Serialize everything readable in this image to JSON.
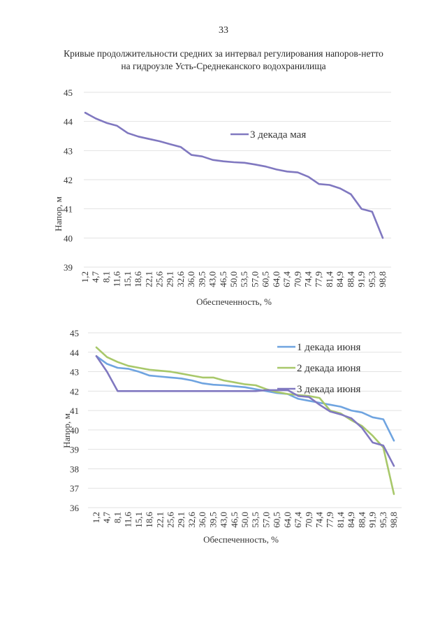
{
  "page": {
    "number": "33",
    "title_line1": "Кривые продолжительности средних за интервал регулирования напоров-нетто",
    "title_line2": "на гидроузле Усть-Среднеканского водохранилища"
  },
  "chart_data": [
    {
      "type": "line",
      "title": "",
      "xlabel": "Обеспеченность, %",
      "ylabel": "Напор, м",
      "ylim": [
        39,
        45
      ],
      "yticks": [
        "39",
        "40",
        "41",
        "42",
        "43",
        "44",
        "45"
      ],
      "grid": true,
      "legend_position": "top-right",
      "categories": [
        "1,2",
        "4,7",
        "8,1",
        "11,6",
        "15,1",
        "18,6",
        "22,1",
        "25,6",
        "29,1",
        "32,6",
        "36,0",
        "39,5",
        "43,0",
        "46,5",
        "50,0",
        "53,5",
        "57,0",
        "60,5",
        "64,0",
        "67,4",
        "70,9",
        "74,4",
        "77,9",
        "81,4",
        "84,9",
        "88,4",
        "91,9",
        "95,3",
        "98,8"
      ],
      "series": [
        {
          "name": "3 декада мая",
          "color": "#8078c0",
          "values": [
            44.3,
            44.1,
            43.95,
            43.85,
            43.6,
            43.48,
            43.4,
            43.32,
            43.22,
            43.12,
            42.85,
            42.8,
            42.68,
            42.63,
            42.6,
            42.58,
            42.52,
            42.45,
            42.35,
            42.28,
            42.25,
            42.1,
            41.85,
            41.82,
            41.7,
            41.5,
            41.0,
            40.9,
            40.0
          ]
        }
      ]
    },
    {
      "type": "line",
      "title": "",
      "xlabel": "Обеспеченность, %",
      "ylabel": "Напор, м",
      "ylim": [
        36,
        45
      ],
      "yticks": [
        "36",
        "37",
        "38",
        "39",
        "40",
        "41",
        "42",
        "43",
        "44",
        "45"
      ],
      "grid": true,
      "legend_position": "top-right",
      "categories": [
        "1,2",
        "4,7",
        "8,1",
        "11,6",
        "15,1",
        "18,6",
        "22,1",
        "25,6",
        "29,1",
        "32,6",
        "36,0",
        "39,5",
        "43,0",
        "46,5",
        "50,0",
        "53,5",
        "57,0",
        "60,5",
        "64,0",
        "67,4",
        "70,9",
        "74,4",
        "77,9",
        "81,4",
        "84,9",
        "88,4",
        "91,9",
        "95,3",
        "98,8"
      ],
      "series": [
        {
          "name": "1 декада июня",
          "color": "#6fa4e0",
          "values": [
            43.8,
            43.4,
            43.2,
            43.15,
            43.0,
            42.8,
            42.75,
            42.7,
            42.65,
            42.55,
            42.4,
            42.33,
            42.3,
            42.25,
            42.2,
            42.1,
            42.0,
            41.9,
            41.85,
            41.6,
            41.5,
            41.4,
            41.3,
            41.2,
            41.0,
            40.9,
            40.65,
            40.55,
            39.45
          ]
        },
        {
          "name": "2 декада июня",
          "color": "#a8c86a",
          "values": [
            44.25,
            43.75,
            43.5,
            43.3,
            43.2,
            43.1,
            43.05,
            43.0,
            42.9,
            42.8,
            42.7,
            42.7,
            42.55,
            42.45,
            42.35,
            42.3,
            42.1,
            41.95,
            41.85,
            41.8,
            41.75,
            41.65,
            41.0,
            40.85,
            40.5,
            40.2,
            39.7,
            39.1,
            36.7
          ]
        },
        {
          "name": "3 декада июня",
          "color": "#8078c0",
          "values": [
            43.8,
            43.0,
            42.0,
            42.0,
            42.0,
            42.0,
            42.0,
            42.0,
            42.0,
            42.0,
            42.0,
            42.0,
            42.0,
            42.0,
            42.0,
            42.0,
            42.05,
            42.05,
            42.05,
            41.75,
            41.7,
            41.3,
            40.95,
            40.8,
            40.6,
            40.1,
            39.35,
            39.2,
            38.15
          ]
        }
      ]
    }
  ]
}
